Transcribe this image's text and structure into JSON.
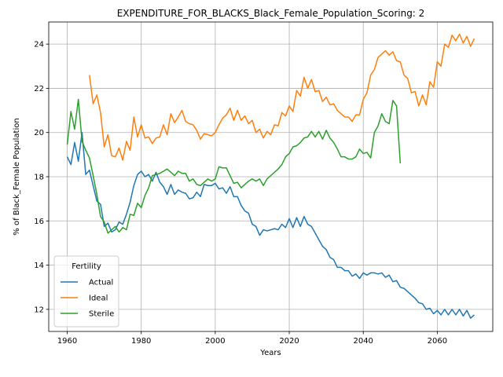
{
  "chart_data": {
    "type": "line",
    "title": "EXPENDITURE_FOR_BLACKS_Black_Female_Population_Scoring: 2",
    "xlabel": "Years",
    "ylabel": "% of Black_Female Population",
    "xlim": [
      1955,
      2075
    ],
    "ylim": [
      11,
      25
    ],
    "xticks": [
      1960,
      1980,
      2000,
      2020,
      2040,
      2060
    ],
    "yticks": [
      12,
      14,
      16,
      18,
      20,
      22,
      24
    ],
    "grid": true,
    "legend": {
      "title": "Fertility",
      "placement": "lower-left"
    },
    "series": [
      {
        "name": "Actual",
        "color": "#1f77b4",
        "points": [
          [
            1960,
            18.9
          ],
          [
            1961,
            18.55
          ],
          [
            1962,
            19.55
          ],
          [
            1963,
            18.7
          ],
          [
            1964,
            20.0
          ],
          [
            1965,
            18.1
          ],
          [
            1966,
            18.3
          ],
          [
            1967,
            17.6
          ],
          [
            1968,
            16.9
          ],
          [
            1969,
            16.75
          ],
          [
            1970,
            15.75
          ],
          [
            1971,
            15.9
          ],
          [
            1972,
            15.5
          ],
          [
            1973,
            15.6
          ],
          [
            1974,
            15.95
          ],
          [
            1975,
            15.85
          ],
          [
            1976,
            16.3
          ],
          [
            1977,
            16.85
          ],
          [
            1978,
            17.6
          ],
          [
            1979,
            18.1
          ],
          [
            1980,
            18.25
          ],
          [
            1981,
            18.0
          ],
          [
            1982,
            18.1
          ],
          [
            1983,
            17.8
          ],
          [
            1984,
            18.2
          ],
          [
            1985,
            17.75
          ],
          [
            1986,
            17.55
          ],
          [
            1987,
            17.2
          ],
          [
            1988,
            17.65
          ],
          [
            1989,
            17.2
          ],
          [
            1990,
            17.4
          ],
          [
            1991,
            17.3
          ],
          [
            1992,
            17.25
          ],
          [
            1993,
            17.0
          ],
          [
            1994,
            17.05
          ],
          [
            1995,
            17.3
          ],
          [
            1996,
            17.1
          ],
          [
            1997,
            17.65
          ],
          [
            1998,
            17.6
          ],
          [
            1999,
            17.6
          ],
          [
            2000,
            17.7
          ],
          [
            2001,
            17.45
          ],
          [
            2002,
            17.5
          ],
          [
            2003,
            17.25
          ],
          [
            2004,
            17.55
          ],
          [
            2005,
            17.1
          ],
          [
            2006,
            17.1
          ],
          [
            2007,
            16.7
          ],
          [
            2008,
            16.45
          ],
          [
            2009,
            16.35
          ],
          [
            2010,
            15.85
          ],
          [
            2011,
            15.75
          ],
          [
            2012,
            15.35
          ],
          [
            2013,
            15.6
          ],
          [
            2014,
            15.55
          ],
          [
            2015,
            15.6
          ],
          [
            2016,
            15.65
          ],
          [
            2017,
            15.6
          ],
          [
            2018,
            15.85
          ],
          [
            2019,
            15.7
          ],
          [
            2020,
            16.1
          ],
          [
            2021,
            15.7
          ],
          [
            2022,
            16.15
          ],
          [
            2023,
            15.75
          ],
          [
            2024,
            16.2
          ],
          [
            2025,
            15.85
          ],
          [
            2026,
            15.75
          ],
          [
            2027,
            15.45
          ],
          [
            2028,
            15.15
          ],
          [
            2029,
            14.85
          ],
          [
            2030,
            14.7
          ],
          [
            2031,
            14.35
          ],
          [
            2032,
            14.25
          ],
          [
            2033,
            13.9
          ],
          [
            2034,
            13.9
          ],
          [
            2035,
            13.75
          ],
          [
            2036,
            13.75
          ],
          [
            2037,
            13.5
          ],
          [
            2038,
            13.6
          ],
          [
            2039,
            13.4
          ],
          [
            2040,
            13.65
          ],
          [
            2041,
            13.55
          ],
          [
            2042,
            13.65
          ],
          [
            2043,
            13.65
          ],
          [
            2044,
            13.6
          ],
          [
            2045,
            13.65
          ],
          [
            2046,
            13.45
          ],
          [
            2047,
            13.55
          ],
          [
            2048,
            13.25
          ],
          [
            2049,
            13.3
          ],
          [
            2050,
            13.0
          ],
          [
            2051,
            12.95
          ],
          [
            2052,
            12.8
          ],
          [
            2053,
            12.65
          ],
          [
            2054,
            12.5
          ],
          [
            2055,
            12.3
          ],
          [
            2056,
            12.25
          ],
          [
            2057,
            12.0
          ],
          [
            2058,
            12.05
          ],
          [
            2059,
            11.8
          ],
          [
            2060,
            11.95
          ],
          [
            2061,
            11.75
          ],
          [
            2062,
            12.0
          ],
          [
            2063,
            11.75
          ],
          [
            2064,
            12.0
          ],
          [
            2065,
            11.75
          ],
          [
            2066,
            12.0
          ],
          [
            2067,
            11.7
          ],
          [
            2068,
            11.95
          ],
          [
            2069,
            11.6
          ],
          [
            2070,
            11.75
          ]
        ]
      },
      {
        "name": "Ideal",
        "color": "#ff7f0e",
        "points": [
          [
            1966,
            22.6
          ],
          [
            1967,
            21.3
          ],
          [
            1968,
            21.7
          ],
          [
            1969,
            20.9
          ],
          [
            1970,
            19.35
          ],
          [
            1971,
            19.9
          ],
          [
            1972,
            18.95
          ],
          [
            1973,
            18.9
          ],
          [
            1974,
            19.3
          ],
          [
            1975,
            18.75
          ],
          [
            1976,
            19.6
          ],
          [
            1977,
            19.2
          ],
          [
            1978,
            20.7
          ],
          [
            1979,
            19.8
          ],
          [
            1980,
            20.35
          ],
          [
            1981,
            19.75
          ],
          [
            1982,
            19.8
          ],
          [
            1983,
            19.5
          ],
          [
            1984,
            19.75
          ],
          [
            1985,
            19.8
          ],
          [
            1986,
            20.35
          ],
          [
            1987,
            19.9
          ],
          [
            1988,
            20.85
          ],
          [
            1989,
            20.45
          ],
          [
            1990,
            20.7
          ],
          [
            1991,
            21.0
          ],
          [
            1992,
            20.5
          ],
          [
            1993,
            20.4
          ],
          [
            1994,
            20.35
          ],
          [
            1995,
            20.1
          ],
          [
            1996,
            19.7
          ],
          [
            1997,
            19.95
          ],
          [
            1998,
            19.9
          ],
          [
            1999,
            19.85
          ],
          [
            2000,
            20.0
          ],
          [
            2001,
            20.35
          ],
          [
            2002,
            20.65
          ],
          [
            2003,
            20.8
          ],
          [
            2004,
            21.1
          ],
          [
            2005,
            20.55
          ],
          [
            2006,
            21.0
          ],
          [
            2007,
            20.55
          ],
          [
            2008,
            20.75
          ],
          [
            2009,
            20.4
          ],
          [
            2010,
            20.55
          ],
          [
            2011,
            20.0
          ],
          [
            2012,
            20.15
          ],
          [
            2013,
            19.75
          ],
          [
            2014,
            20.05
          ],
          [
            2015,
            19.9
          ],
          [
            2016,
            20.35
          ],
          [
            2017,
            20.3
          ],
          [
            2018,
            20.9
          ],
          [
            2019,
            20.75
          ],
          [
            2020,
            21.2
          ],
          [
            2021,
            20.95
          ],
          [
            2022,
            21.9
          ],
          [
            2023,
            21.65
          ],
          [
            2024,
            22.5
          ],
          [
            2025,
            22.0
          ],
          [
            2026,
            22.4
          ],
          [
            2027,
            21.85
          ],
          [
            2028,
            21.9
          ],
          [
            2029,
            21.4
          ],
          [
            2030,
            21.6
          ],
          [
            2031,
            21.25
          ],
          [
            2032,
            21.3
          ],
          [
            2033,
            21.0
          ],
          [
            2034,
            20.85
          ],
          [
            2035,
            20.7
          ],
          [
            2036,
            20.7
          ],
          [
            2037,
            20.5
          ],
          [
            2038,
            20.8
          ],
          [
            2039,
            20.8
          ],
          [
            2040,
            21.5
          ],
          [
            2041,
            21.8
          ],
          [
            2042,
            22.6
          ],
          [
            2043,
            22.85
          ],
          [
            2044,
            23.4
          ],
          [
            2045,
            23.55
          ],
          [
            2046,
            23.7
          ],
          [
            2047,
            23.5
          ],
          [
            2048,
            23.65
          ],
          [
            2049,
            23.25
          ],
          [
            2050,
            23.2
          ],
          [
            2051,
            22.6
          ],
          [
            2052,
            22.45
          ],
          [
            2053,
            21.8
          ],
          [
            2054,
            21.85
          ],
          [
            2055,
            21.2
          ],
          [
            2056,
            21.7
          ],
          [
            2057,
            21.25
          ],
          [
            2058,
            22.3
          ],
          [
            2059,
            22.05
          ],
          [
            2060,
            23.2
          ],
          [
            2061,
            23.0
          ],
          [
            2062,
            24.0
          ],
          [
            2063,
            23.85
          ],
          [
            2064,
            24.4
          ],
          [
            2065,
            24.15
          ],
          [
            2066,
            24.45
          ],
          [
            2067,
            24.05
          ],
          [
            2068,
            24.35
          ],
          [
            2069,
            23.9
          ],
          [
            2070,
            24.25
          ]
        ]
      },
      {
        "name": "Sterile",
        "color": "#2ca02c",
        "points": [
          [
            1960,
            19.45
          ],
          [
            1961,
            20.95
          ],
          [
            1962,
            20.15
          ],
          [
            1963,
            21.5
          ],
          [
            1964,
            19.6
          ],
          [
            1965,
            19.2
          ],
          [
            1966,
            18.85
          ],
          [
            1967,
            18.05
          ],
          [
            1968,
            17.2
          ],
          [
            1969,
            16.2
          ],
          [
            1970,
            15.95
          ],
          [
            1971,
            15.45
          ],
          [
            1972,
            15.6
          ],
          [
            1973,
            15.75
          ],
          [
            1974,
            15.5
          ],
          [
            1975,
            15.7
          ],
          [
            1976,
            15.6
          ],
          [
            1977,
            16.3
          ],
          [
            1978,
            16.25
          ],
          [
            1979,
            16.8
          ],
          [
            1980,
            16.6
          ],
          [
            1981,
            17.15
          ],
          [
            1982,
            17.5
          ],
          [
            1983,
            18.05
          ],
          [
            1984,
            18.1
          ],
          [
            1985,
            18.15
          ],
          [
            1986,
            18.25
          ],
          [
            1987,
            18.35
          ],
          [
            1988,
            18.2
          ],
          [
            1989,
            18.05
          ],
          [
            1990,
            18.25
          ],
          [
            1991,
            18.15
          ],
          [
            1992,
            18.15
          ],
          [
            1993,
            17.8
          ],
          [
            1994,
            17.9
          ],
          [
            1995,
            17.65
          ],
          [
            1996,
            17.6
          ],
          [
            1997,
            17.75
          ],
          [
            1998,
            17.9
          ],
          [
            1999,
            17.8
          ],
          [
            2000,
            17.9
          ],
          [
            2001,
            18.45
          ],
          [
            2002,
            18.4
          ],
          [
            2003,
            18.4
          ],
          [
            2004,
            18.05
          ],
          [
            2005,
            17.7
          ],
          [
            2006,
            17.75
          ],
          [
            2007,
            17.5
          ],
          [
            2008,
            17.65
          ],
          [
            2009,
            17.8
          ],
          [
            2010,
            17.9
          ],
          [
            2011,
            17.8
          ],
          [
            2012,
            17.9
          ],
          [
            2013,
            17.6
          ],
          [
            2014,
            17.9
          ],
          [
            2015,
            18.05
          ],
          [
            2016,
            18.2
          ],
          [
            2017,
            18.35
          ],
          [
            2018,
            18.55
          ],
          [
            2019,
            18.9
          ],
          [
            2020,
            19.05
          ],
          [
            2021,
            19.35
          ],
          [
            2022,
            19.4
          ],
          [
            2023,
            19.55
          ],
          [
            2024,
            19.75
          ],
          [
            2025,
            19.8
          ],
          [
            2026,
            20.05
          ],
          [
            2027,
            19.8
          ],
          [
            2028,
            20.05
          ],
          [
            2029,
            19.7
          ],
          [
            2030,
            20.1
          ],
          [
            2031,
            19.75
          ],
          [
            2032,
            19.55
          ],
          [
            2033,
            19.25
          ],
          [
            2034,
            18.9
          ],
          [
            2035,
            18.9
          ],
          [
            2036,
            18.8
          ],
          [
            2037,
            18.8
          ],
          [
            2038,
            18.9
          ],
          [
            2039,
            19.25
          ],
          [
            2040,
            19.05
          ],
          [
            2041,
            19.1
          ],
          [
            2042,
            18.85
          ],
          [
            2043,
            20.0
          ],
          [
            2044,
            20.3
          ],
          [
            2045,
            20.85
          ],
          [
            2046,
            20.5
          ],
          [
            2047,
            20.4
          ],
          [
            2048,
            21.45
          ],
          [
            2049,
            21.2
          ],
          [
            2050,
            18.6
          ]
        ]
      }
    ]
  }
}
